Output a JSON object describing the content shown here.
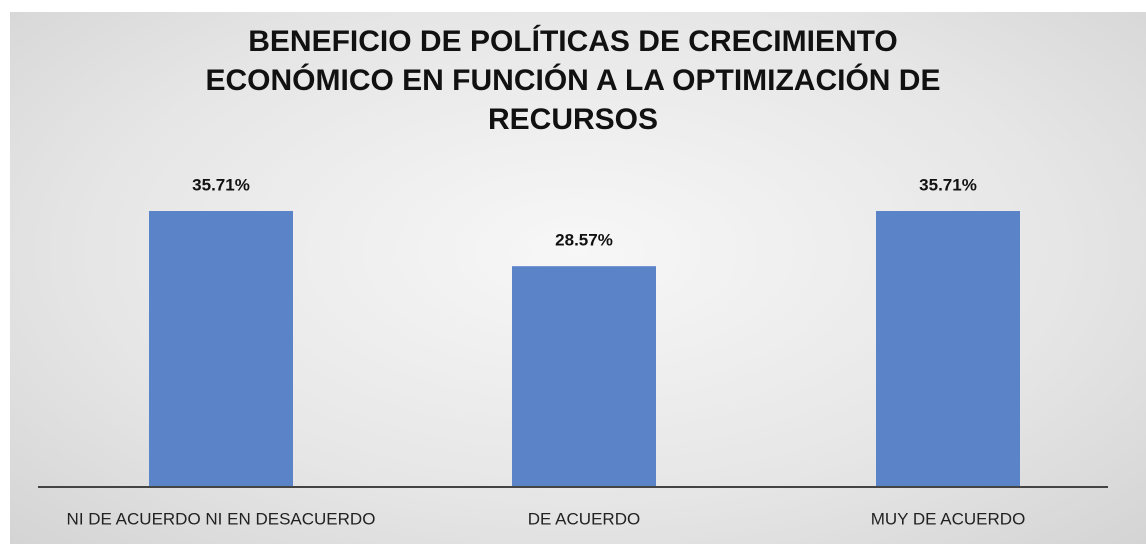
{
  "chart_data": {
    "type": "bar",
    "title": "BENEFICIO DE POLÍTICAS DE CRECIMIENTO ECONÓMICO EN FUNCIÓN A LA OPTIMIZACIÓN DE RECURSOS",
    "categories": [
      "NI DE ACUERDO NI EN DESACUERDO",
      "DE ACUERDO",
      "MUY DE ACUERDO"
    ],
    "values": [
      35.71,
      28.57,
      35.71
    ],
    "value_labels": [
      "35.71%",
      "28.57%",
      "35.71%"
    ],
    "color": "#5b84c8"
  }
}
